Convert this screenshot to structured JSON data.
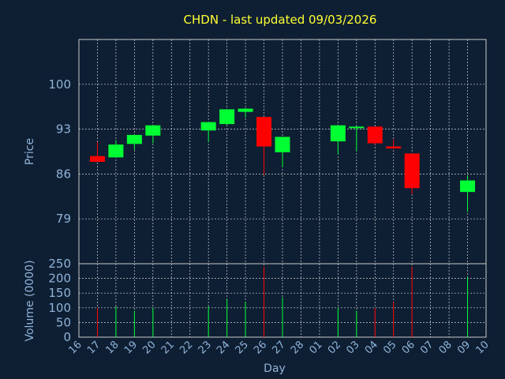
{
  "title": "CHDN - last updated 09/03/2026",
  "colors": {
    "background": "#0f1f33",
    "plot_bg": "#0f1f33",
    "frame": "#c8c8c8",
    "grid": "#ffffff",
    "title": "#ffff33",
    "label": "#8fb3d9",
    "up": "#00ff33",
    "down": "#ff0000"
  },
  "chart_data": [
    {
      "type": "candlestick",
      "title": "CHDN - last updated 09/03/2026",
      "ylabel": "Price",
      "ylim": [
        72,
        107
      ],
      "yticks": [
        79,
        86,
        93,
        100
      ],
      "grid": true,
      "xlabel": "Day",
      "categories": [
        "16",
        "17",
        "18",
        "19",
        "20",
        "21",
        "22",
        "23",
        "24",
        "25",
        "26",
        "27",
        "28",
        "01",
        "02",
        "03",
        "04",
        "05",
        "06",
        "07",
        "08",
        "09",
        "10"
      ],
      "candles": [
        {
          "day": "17",
          "open": 88.8,
          "high": 91.0,
          "low": 87.9,
          "close": 87.9
        },
        {
          "day": "18",
          "open": 88.6,
          "high": 91.3,
          "low": 88.6,
          "close": 90.6
        },
        {
          "day": "19",
          "open": 90.7,
          "high": 92.2,
          "low": 89.8,
          "close": 92.1
        },
        {
          "day": "20",
          "open": 92.0,
          "high": 93.6,
          "low": 90.8,
          "close": 93.6
        },
        {
          "day": "23",
          "open": 92.8,
          "high": 94.1,
          "low": 91.0,
          "close": 94.1
        },
        {
          "day": "24",
          "open": 93.8,
          "high": 96.1,
          "low": 93.6,
          "close": 96.1
        },
        {
          "day": "25",
          "open": 95.7,
          "high": 96.3,
          "low": 94.8,
          "close": 96.2
        },
        {
          "day": "26",
          "open": 94.9,
          "high": 94.9,
          "low": 85.9,
          "close": 90.3
        },
        {
          "day": "27",
          "open": 89.4,
          "high": 91.8,
          "low": 87.1,
          "close": 91.8
        },
        {
          "day": "02",
          "open": 91.1,
          "high": 93.7,
          "low": 89.1,
          "close": 93.6
        },
        {
          "day": "03",
          "open": 93.3,
          "high": 93.5,
          "low": 89.6,
          "close": 93.4
        },
        {
          "day": "04",
          "open": 93.4,
          "high": 93.4,
          "low": 90.6,
          "close": 90.8
        },
        {
          "day": "05",
          "open": 90.3,
          "high": 91.4,
          "low": 89.9,
          "close": 90.0
        },
        {
          "day": "06",
          "open": 89.2,
          "high": 89.2,
          "low": 82.9,
          "close": 83.8
        },
        {
          "day": "09",
          "open": 83.2,
          "high": 85.8,
          "low": 80.1,
          "close": 85.0
        }
      ]
    },
    {
      "type": "bar",
      "ylabel": "Volume (0000)",
      "ylim": [
        0,
        250
      ],
      "yticks": [
        0,
        50,
        100,
        150,
        200,
        250
      ],
      "grid": true,
      "series": [
        {
          "values": [
            {
              "day": "17",
              "value": 100,
              "dir": "down"
            },
            {
              "day": "18",
              "value": 105,
              "dir": "up"
            },
            {
              "day": "19",
              "value": 90,
              "dir": "up"
            },
            {
              "day": "20",
              "value": 100,
              "dir": "up"
            },
            {
              "day": "23",
              "value": 105,
              "dir": "up"
            },
            {
              "day": "24",
              "value": 130,
              "dir": "up"
            },
            {
              "day": "25",
              "value": 120,
              "dir": "up"
            },
            {
              "day": "26",
              "value": 240,
              "dir": "down"
            },
            {
              "day": "27",
              "value": 135,
              "dir": "up"
            },
            {
              "day": "02",
              "value": 100,
              "dir": "up"
            },
            {
              "day": "03",
              "value": 90,
              "dir": "up"
            },
            {
              "day": "04",
              "value": 100,
              "dir": "down"
            },
            {
              "day": "05",
              "value": 120,
              "dir": "down"
            },
            {
              "day": "06",
              "value": 240,
              "dir": "down"
            },
            {
              "day": "09",
              "value": 205,
              "dir": "up"
            }
          ]
        }
      ]
    }
  ]
}
